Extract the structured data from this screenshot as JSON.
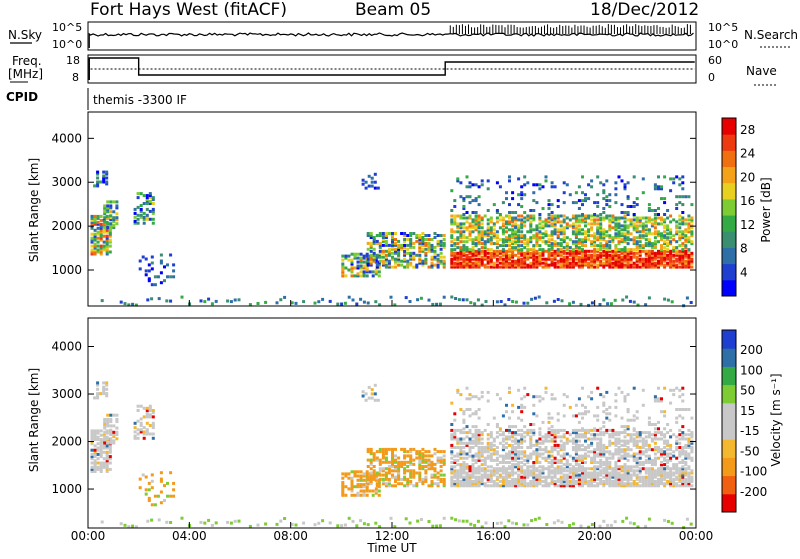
{
  "header": {
    "station": "Fort Hays West (fitACF)",
    "beam": "Beam 05",
    "date": "18/Dec/2012"
  },
  "strip_labels": {
    "nsky": "N.Sky",
    "nsearch": "N.Search",
    "freq_line1": "Freq.",
    "freq_line2": "[MHz]",
    "nave": "Nave",
    "cpid": "CPID",
    "cpid_value": "themis -3300 IF",
    "noise_ticks_left": [
      "10^5",
      "10^0"
    ],
    "noise_ticks_right": [
      "10^5",
      "10^0"
    ],
    "freq_ticks": [
      "18",
      "8"
    ],
    "nave_ticks": [
      "60",
      "0"
    ]
  },
  "colors": {
    "frame": "#000000",
    "power_scale": [
      "#0000ff",
      "#1f3fd0",
      "#2f6fa8",
      "#3a8f70",
      "#33aa44",
      "#7dcc33",
      "#e8d020",
      "#f4a21a",
      "#f07010",
      "#ee3a10",
      "#e60000"
    ],
    "velocity_scale": [
      "#e60000",
      "#f06010",
      "#f49a1a",
      "#f4b830",
      "#c8c8c8",
      "#c8c8c8",
      "#7dcc33",
      "#33aa44",
      "#2f6fa8",
      "#1f3fd0"
    ]
  },
  "chart_data": [
    {
      "type": "heatmap",
      "name": "power",
      "xlabel": "Time UT",
      "ylabel": "Slant Range [km]",
      "x_ticks": [
        "00:00",
        "04:00",
        "08:00",
        "12:00",
        "16:00",
        "20:00",
        "00:00"
      ],
      "xlim_hours": [
        0,
        24
      ],
      "y_ticks": [
        1000,
        2000,
        3000,
        4000
      ],
      "ylim": [
        180,
        4600
      ],
      "colorbar_label": "Power [dB]",
      "colorbar_ticks": [
        4,
        8,
        12,
        16,
        20,
        24,
        28
      ],
      "clim": [
        0,
        30
      ]
    },
    {
      "type": "heatmap",
      "name": "velocity",
      "xlabel": "Time UT",
      "ylabel": "Slant Range [km]",
      "x_ticks": [
        "00:00",
        "04:00",
        "08:00",
        "12:00",
        "16:00",
        "20:00",
        "00:00"
      ],
      "xlim_hours": [
        0,
        24
      ],
      "y_ticks": [
        1000,
        2000,
        3000,
        4000
      ],
      "ylim": [
        180,
        4600
      ],
      "colorbar_label": "Velocity [m s⁻¹]",
      "colorbar_ticks": [
        200,
        100,
        50,
        15,
        -15,
        -50,
        -100,
        -200
      ],
      "clim": [
        -250,
        250
      ]
    }
  ]
}
